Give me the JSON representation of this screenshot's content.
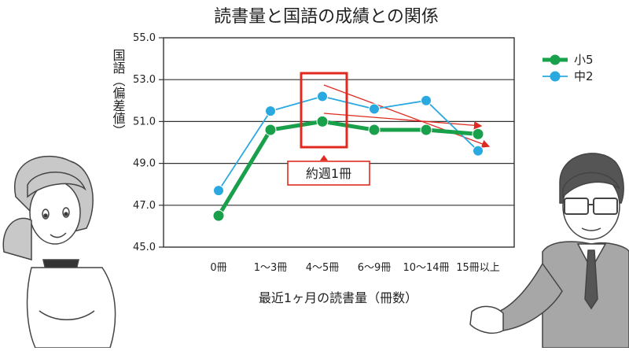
{
  "chart_data": {
    "type": "line",
    "title": "読書量と国語の成績との関係",
    "xlabel": "最近1ヶ月の読書量（冊数）",
    "ylabel": "国語（偏差値）",
    "categories": [
      "0冊",
      "1〜3冊",
      "4〜5冊",
      "6〜9冊",
      "10〜14冊",
      "15冊以上"
    ],
    "ylim": [
      45.0,
      55.0
    ],
    "yticks": [
      "45.0",
      "47.0",
      "49.0",
      "51.0",
      "53.0",
      "55.0"
    ],
    "grid": true,
    "legend_position": "top-right",
    "series": [
      {
        "name": "小5",
        "values": [
          46.5,
          50.6,
          51.0,
          50.6,
          50.6,
          50.4
        ],
        "color": "#18a04a"
      },
      {
        "name": "中2",
        "values": [
          47.7,
          51.5,
          52.2,
          51.6,
          52.0,
          49.6
        ],
        "color": "#2aa9e0"
      }
    ],
    "annotation": {
      "label": "約週1冊",
      "category": "4〜5冊",
      "color": "#e02a20"
    }
  }
}
